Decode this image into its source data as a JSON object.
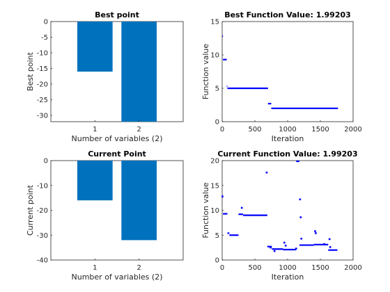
{
  "chart_data": [
    {
      "type": "bar",
      "title": "Best point",
      "xlabel": "Number of variables (2)",
      "ylabel": "Best point",
      "categories": [
        "1",
        "2"
      ],
      "values": [
        -16,
        -32
      ],
      "ylim": [
        -32,
        0
      ],
      "yticks": [
        0,
        -5,
        -10,
        -15,
        -20,
        -25,
        -30
      ],
      "bar_color": "#0072bd"
    },
    {
      "type": "scatter",
      "title": "Best Function Value: 1.99203",
      "xlabel": "Iteration",
      "ylabel": "Function value",
      "xlim": [
        0,
        2000
      ],
      "ylim": [
        0,
        15
      ],
      "xticks": [
        0,
        500,
        1000,
        1500,
        2000
      ],
      "yticks": [
        0,
        5,
        10,
        15
      ],
      "marker_color": "#0000ff",
      "segments": [
        {
          "x0": 0,
          "x1": 12,
          "y": 12.8
        },
        {
          "x0": 12,
          "x1": 70,
          "y": 9.3
        },
        {
          "x0": 70,
          "x1": 80,
          "y": 5.3
        },
        {
          "x0": 80,
          "x1": 700,
          "y": 5.0
        },
        {
          "x0": 700,
          "x1": 750,
          "y": 2.7
        },
        {
          "x0": 750,
          "x1": 1770,
          "y": 2.0
        }
      ]
    },
    {
      "type": "bar",
      "title": "Current Point",
      "xlabel": "Number of variables (2)",
      "ylabel": "Current point",
      "categories": [
        "1",
        "2"
      ],
      "values": [
        -16,
        -32
      ],
      "ylim": [
        -40,
        0
      ],
      "yticks": [
        0,
        -10,
        -20,
        -30,
        -40
      ],
      "bar_color": "#0072bd"
    },
    {
      "type": "scatter",
      "title": "Current Function Value: 1.99203",
      "xlabel": "Iteration",
      "ylabel": "Function value",
      "xlim": [
        0,
        2000
      ],
      "ylim": [
        0,
        20
      ],
      "xticks": [
        0,
        500,
        1000,
        1500,
        2000
      ],
      "yticks": [
        0,
        5,
        10,
        15,
        20
      ],
      "marker_color": "#0000ff",
      "segments": [
        {
          "x0": 0,
          "x1": 12,
          "y": 12.7
        },
        {
          "x0": 12,
          "x1": 80,
          "y": 9.3
        },
        {
          "x0": 80,
          "x1": 110,
          "y": 5.4
        },
        {
          "x0": 110,
          "x1": 250,
          "y": 5.0
        },
        {
          "x0": 250,
          "x1": 320,
          "y": 9.2
        },
        {
          "x0": 320,
          "x1": 690,
          "y": 9.0
        },
        {
          "x0": 690,
          "x1": 760,
          "y": 2.7
        },
        {
          "x0": 760,
          "x1": 930,
          "y": 2.2
        },
        {
          "x0": 930,
          "x1": 1130,
          "y": 2.1
        },
        {
          "x0": 1130,
          "x1": 1180,
          "y": 20
        },
        {
          "x0": 1180,
          "x1": 1400,
          "y": 3.0
        },
        {
          "x0": 1400,
          "x1": 1620,
          "y": 3.1
        },
        {
          "x0": 1620,
          "x1": 1760,
          "y": 2.0
        }
      ],
      "points": [
        {
          "x": 5,
          "y": 12.8
        },
        {
          "x": 300,
          "y": 10.5
        },
        {
          "x": 680,
          "y": 17.6
        },
        {
          "x": 740,
          "y": 2.5
        },
        {
          "x": 800,
          "y": 1.8
        },
        {
          "x": 950,
          "y": 3.5
        },
        {
          "x": 970,
          "y": 2.9
        },
        {
          "x": 1130,
          "y": 2.3
        },
        {
          "x": 1190,
          "y": 12.2
        },
        {
          "x": 1200,
          "y": 8.6
        },
        {
          "x": 1210,
          "y": 4.3
        },
        {
          "x": 1420,
          "y": 5.8
        },
        {
          "x": 1430,
          "y": 5.4
        },
        {
          "x": 1560,
          "y": 3.2
        },
        {
          "x": 1640,
          "y": 4.2
        },
        {
          "x": 1650,
          "y": 2.6
        }
      ]
    }
  ]
}
